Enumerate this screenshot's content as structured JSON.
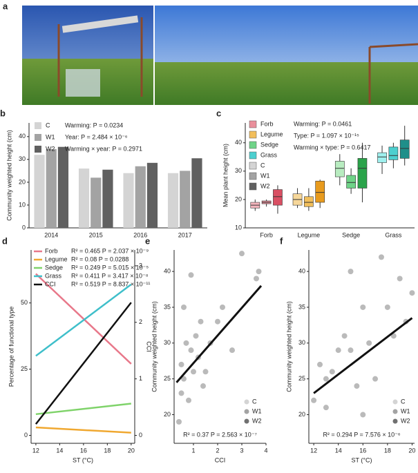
{
  "photo_panel": "a",
  "chart_data": [
    {
      "type": "bar",
      "panel": "b",
      "ylabel": "Community weighted height (cm)",
      "categories": [
        "2014",
        "2015",
        "2016",
        "2017"
      ],
      "series": [
        {
          "name": "C",
          "color": "#d4d4d4",
          "values": [
            32,
            26,
            24,
            24
          ]
        },
        {
          "name": "W1",
          "color": "#a3a3a3",
          "values": [
            34.5,
            22,
            27,
            25
          ]
        },
        {
          "name": "W2",
          "color": "#606060",
          "values": [
            35.5,
            25.5,
            28.5,
            30.5
          ]
        }
      ],
      "annotations": [
        "Warming: P = 0.0234",
        "Year: P = 2.484 × 10⁻⁶",
        "Warming × year: P = 0.2971"
      ],
      "ylim": [
        0,
        46
      ],
      "yticks": [
        0,
        10,
        20,
        30,
        40
      ]
    },
    {
      "type": "box",
      "panel": "c",
      "ylabel": "Mean plant height (cm)",
      "categories": [
        "Forb",
        "Legume",
        "Sedge",
        "Grass"
      ],
      "groups": [
        {
          "colors": [
            "#f4b6be",
            "#e98f9b",
            "#d94f63"
          ],
          "min": [
            16,
            17.5,
            15
          ],
          "q1": [
            17,
            18.5,
            18
          ],
          "median": [
            18,
            19,
            21
          ],
          "q3": [
            19,
            19.5,
            23.5
          ],
          "max": [
            20,
            20,
            25
          ]
        },
        {
          "colors": [
            "#f6d79a",
            "#f2bf5c",
            "#e89b1e"
          ],
          "min": [
            17,
            16,
            17
          ],
          "q1": [
            18,
            17.5,
            19
          ],
          "median": [
            20,
            19,
            22.5
          ],
          "q3": [
            22,
            21,
            26.5
          ],
          "max": [
            24,
            24,
            27
          ]
        },
        {
          "colors": [
            "#b8ecc0",
            "#6fd388",
            "#2aa34a"
          ],
          "min": [
            25,
            22,
            19
          ],
          "q1": [
            28,
            24,
            24
          ],
          "median": [
            31,
            26,
            31
          ],
          "q3": [
            33.5,
            28.5,
            34.5
          ],
          "max": [
            36,
            31,
            40
          ]
        },
        {
          "colors": [
            "#9ff0ee",
            "#4ccfcf",
            "#1f8f8a"
          ],
          "min": [
            29,
            31,
            32
          ],
          "q1": [
            33,
            34,
            34.5
          ],
          "median": [
            35,
            35.5,
            38
          ],
          "q3": [
            36.5,
            38.5,
            41
          ],
          "max": [
            39,
            40,
            46
          ]
        }
      ],
      "legend": [
        {
          "name": "Forb",
          "color": "#e98f9b"
        },
        {
          "name": "Legume",
          "color": "#f2bf5c"
        },
        {
          "name": "Sedge",
          "color": "#6fd388"
        },
        {
          "name": "Grass",
          "color": "#4ccfcf"
        },
        {
          "name": "C",
          "color": "#d4d4d4"
        },
        {
          "name": "W1",
          "color": "#a3a3a3"
        },
        {
          "name": "W2",
          "color": "#606060"
        }
      ],
      "annotations": [
        "Warming: P = 0.0461",
        "Type: P = 1.097 × 10⁻¹⁵",
        "Warming × type: P = 0.6417"
      ],
      "ylim": [
        10,
        47
      ],
      "yticks": [
        10,
        20,
        30,
        40
      ]
    },
    {
      "type": "line",
      "panel": "d",
      "xlabel": "ST (°C)",
      "ylabel": "Percentage of functional type",
      "y2label": "CCI",
      "series": [
        {
          "name": "Forb",
          "color": "#e8788a",
          "x": [
            12,
            20
          ],
          "values": [
            61,
            27
          ],
          "stats": "R² = 0.465 P = 2.037 × 10⁻⁹"
        },
        {
          "name": "Legume",
          "color": "#f0a830",
          "x": [
            12,
            20
          ],
          "values": [
            3,
            1
          ],
          "stats": "R² = 0.08 P = 0.0288"
        },
        {
          "name": "Sedge",
          "color": "#7fd36a",
          "x": [
            12,
            20
          ],
          "values": [
            8,
            12
          ],
          "stats": "R² = 0.249 P = 5.015 × 10⁻⁵"
        },
        {
          "name": "Grass",
          "color": "#3fbfca",
          "x": [
            12,
            20
          ],
          "values": [
            30,
            57
          ],
          "stats": "R² = 0.411 P = 3.417 × 10⁻⁸"
        },
        {
          "name": "CCI",
          "color": "#111111",
          "axis": "y2",
          "x": [
            12,
            20
          ],
          "values": [
            0.2,
            2.35
          ],
          "stats": "R² = 0.519 P = 8.837 × 10⁻¹¹"
        }
      ],
      "xlim": [
        11.6,
        20.3
      ],
      "xticks": [
        12,
        14,
        16,
        18,
        20
      ],
      "ylim": [
        -3,
        70
      ],
      "yticks": [
        0,
        25,
        50
      ],
      "y2lim": [
        -0.14,
        3.28
      ],
      "y2ticks": [
        0,
        1,
        2,
        3
      ]
    },
    {
      "type": "scatter",
      "panel": "e",
      "xlabel": "CCI",
      "ylabel": "Community weighted height (cm)",
      "x": [
        0.5,
        0.6,
        0.7,
        0.8,
        0.9,
        1.0,
        1.1,
        1.2,
        1.3,
        0.4,
        0.6,
        0.9,
        1.5,
        1.7,
        2.0,
        2.2,
        2.6,
        3.0,
        3.6,
        3.7,
        1.4,
        0.5
      ],
      "values": [
        27,
        25,
        30,
        22,
        29,
        26,
        31,
        28,
        33,
        19,
        35,
        39.5,
        26,
        30,
        33,
        35,
        29,
        42.5,
        39,
        40,
        24,
        23
      ],
      "color": "#a9a9a9",
      "fit": {
        "x": [
          0.3,
          3.8
        ],
        "values": [
          24.5,
          38
        ]
      },
      "legend": [
        {
          "name": "C",
          "color": "#d4d4d4"
        },
        {
          "name": "W1",
          "color": "#a3a3a3"
        },
        {
          "name": "W2",
          "color": "#707070"
        }
      ],
      "annotation": "R² = 0.37 P = 2.563 × 10⁻⁷",
      "xlim": [
        0.2,
        4
      ],
      "xticks": [
        1,
        2,
        3,
        4
      ],
      "ylim": [
        16,
        43
      ],
      "yticks": [
        20,
        25,
        30,
        35,
        40
      ]
    },
    {
      "type": "scatter",
      "panel": "f",
      "xlabel": "ST (°C)",
      "ylabel": "Community weighted height (cm)",
      "x": [
        12,
        12.5,
        13,
        13.5,
        14,
        14.5,
        15,
        15,
        15.5,
        16,
        16.5,
        17,
        17.5,
        18,
        18.5,
        19,
        19.5,
        20,
        13,
        16
      ],
      "values": [
        22,
        27,
        25,
        26,
        29,
        31,
        29,
        40,
        24,
        35,
        30,
        25,
        42,
        35,
        31,
        39,
        33,
        37,
        21,
        20
      ],
      "color": "#a9a9a9",
      "fit": {
        "x": [
          12,
          20
        ],
        "values": [
          23,
          33.5
        ]
      },
      "legend": [
        {
          "name": "C",
          "color": "#d4d4d4"
        },
        {
          "name": "W1",
          "color": "#a3a3a3"
        },
        {
          "name": "W2",
          "color": "#707070"
        }
      ],
      "annotation": "R² = 0.294 P = 7.576 × 10⁻⁶",
      "xlim": [
        11.6,
        20.2
      ],
      "xticks": [
        12,
        14,
        16,
        18,
        20
      ],
      "ylim": [
        16,
        43
      ],
      "yticks": [
        20,
        25,
        30,
        35,
        40
      ]
    }
  ]
}
